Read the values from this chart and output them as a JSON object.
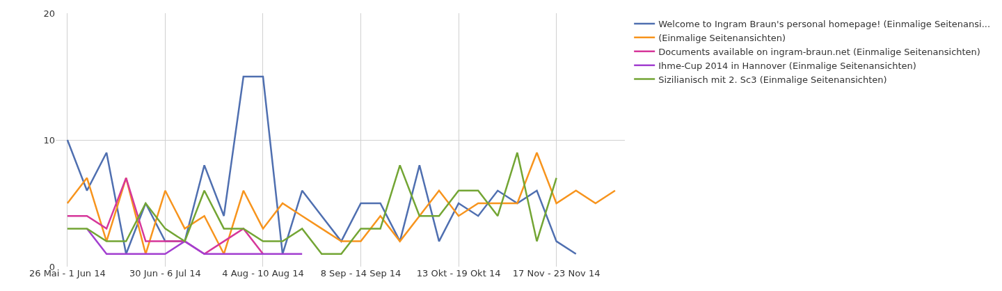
{
  "chart_data": {
    "type": "line",
    "categories": [
      "26 Mai - 1 Jun 14",
      null,
      null,
      null,
      null,
      "30 Jun - 6 Jul 14",
      null,
      null,
      null,
      null,
      "4 Aug - 10 Aug 14",
      null,
      null,
      null,
      null,
      "8 Sep - 14 Sep 14",
      null,
      null,
      null,
      null,
      "13 Okt - 19 Okt 14",
      null,
      null,
      null,
      null,
      "17 Nov - 23 Nov 14",
      null,
      null,
      null
    ],
    "series": [
      {
        "name": "Welcome to Ingram Braun's personal homepage! (Einmalige Seitenansi...",
        "color": "#4f6fb0",
        "values": [
          10,
          6,
          9,
          1,
          5,
          2,
          2,
          8,
          4,
          15,
          15,
          1,
          6,
          4,
          2,
          5,
          5,
          2,
          8,
          2,
          5,
          4,
          6,
          5,
          6,
          2,
          1,
          null,
          null
        ]
      },
      {
        "name": "(Einmalige Seitenansichten)",
        "color": "#f7941d",
        "values": [
          5,
          7,
          2,
          7,
          1,
          6,
          3,
          4,
          1,
          6,
          3,
          5,
          4,
          3,
          2,
          2,
          4,
          2,
          4,
          6,
          4,
          5,
          5,
          5,
          9,
          5,
          6,
          5,
          6
        ]
      },
      {
        "name": "Documents available on ingram-braun.net (Einmalige Seitenansichten)",
        "color": "#d6379a",
        "values": [
          4,
          4,
          3,
          7,
          2,
          2,
          2,
          1,
          2,
          3,
          1,
          null,
          null,
          null,
          null,
          null,
          null,
          null,
          null,
          null,
          null,
          null,
          null,
          null,
          null,
          null,
          null,
          null,
          null
        ]
      },
      {
        "name": "Ihme-Cup 2014 in Hannover (Einmalige Seitenansichten)",
        "color": "#a23fd0",
        "values": [
          null,
          3,
          1,
          1,
          1,
          1,
          2,
          1,
          1,
          1,
          1,
          1,
          1,
          null,
          null,
          null,
          null,
          null,
          null,
          null,
          null,
          null,
          null,
          null,
          null,
          null,
          null,
          null,
          null
        ]
      },
      {
        "name": "Sizilianisch mit 2. Sc3 (Einmalige Seitenansichten)",
        "color": "#73a534",
        "values": [
          3,
          3,
          2,
          2,
          5,
          3,
          2,
          6,
          3,
          3,
          2,
          2,
          3,
          1,
          1,
          3,
          3,
          8,
          4,
          4,
          6,
          6,
          4,
          9,
          2,
          7,
          null,
          null,
          null
        ]
      }
    ],
    "ylim": [
      0,
      20
    ],
    "yticks": [
      0,
      10,
      20
    ],
    "grid": true,
    "legend": "right",
    "marker": "none",
    "line_style": "solid"
  }
}
